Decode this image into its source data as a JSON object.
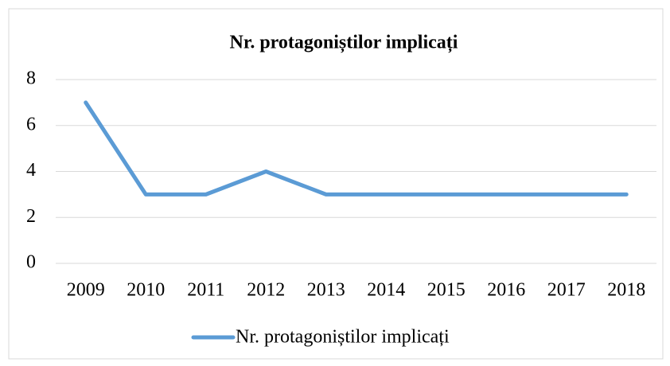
{
  "chart_data": {
    "type": "line",
    "title": "Nr. protagoniștilor implicați",
    "categories": [
      "2009",
      "2010",
      "2011",
      "2012",
      "2013",
      "2014",
      "2015",
      "2016",
      "2017",
      "2018"
    ],
    "series": [
      {
        "name": "Nr. protagoniștilor implicați",
        "color": "#5b9bd5",
        "values": [
          7,
          3,
          3,
          4,
          3,
          3,
          3,
          3,
          3,
          3
        ]
      }
    ],
    "ylim": [
      0,
      8
    ],
    "yticks": [
      0,
      2,
      4,
      6,
      8
    ],
    "grid": true,
    "legend": "bottom"
  }
}
